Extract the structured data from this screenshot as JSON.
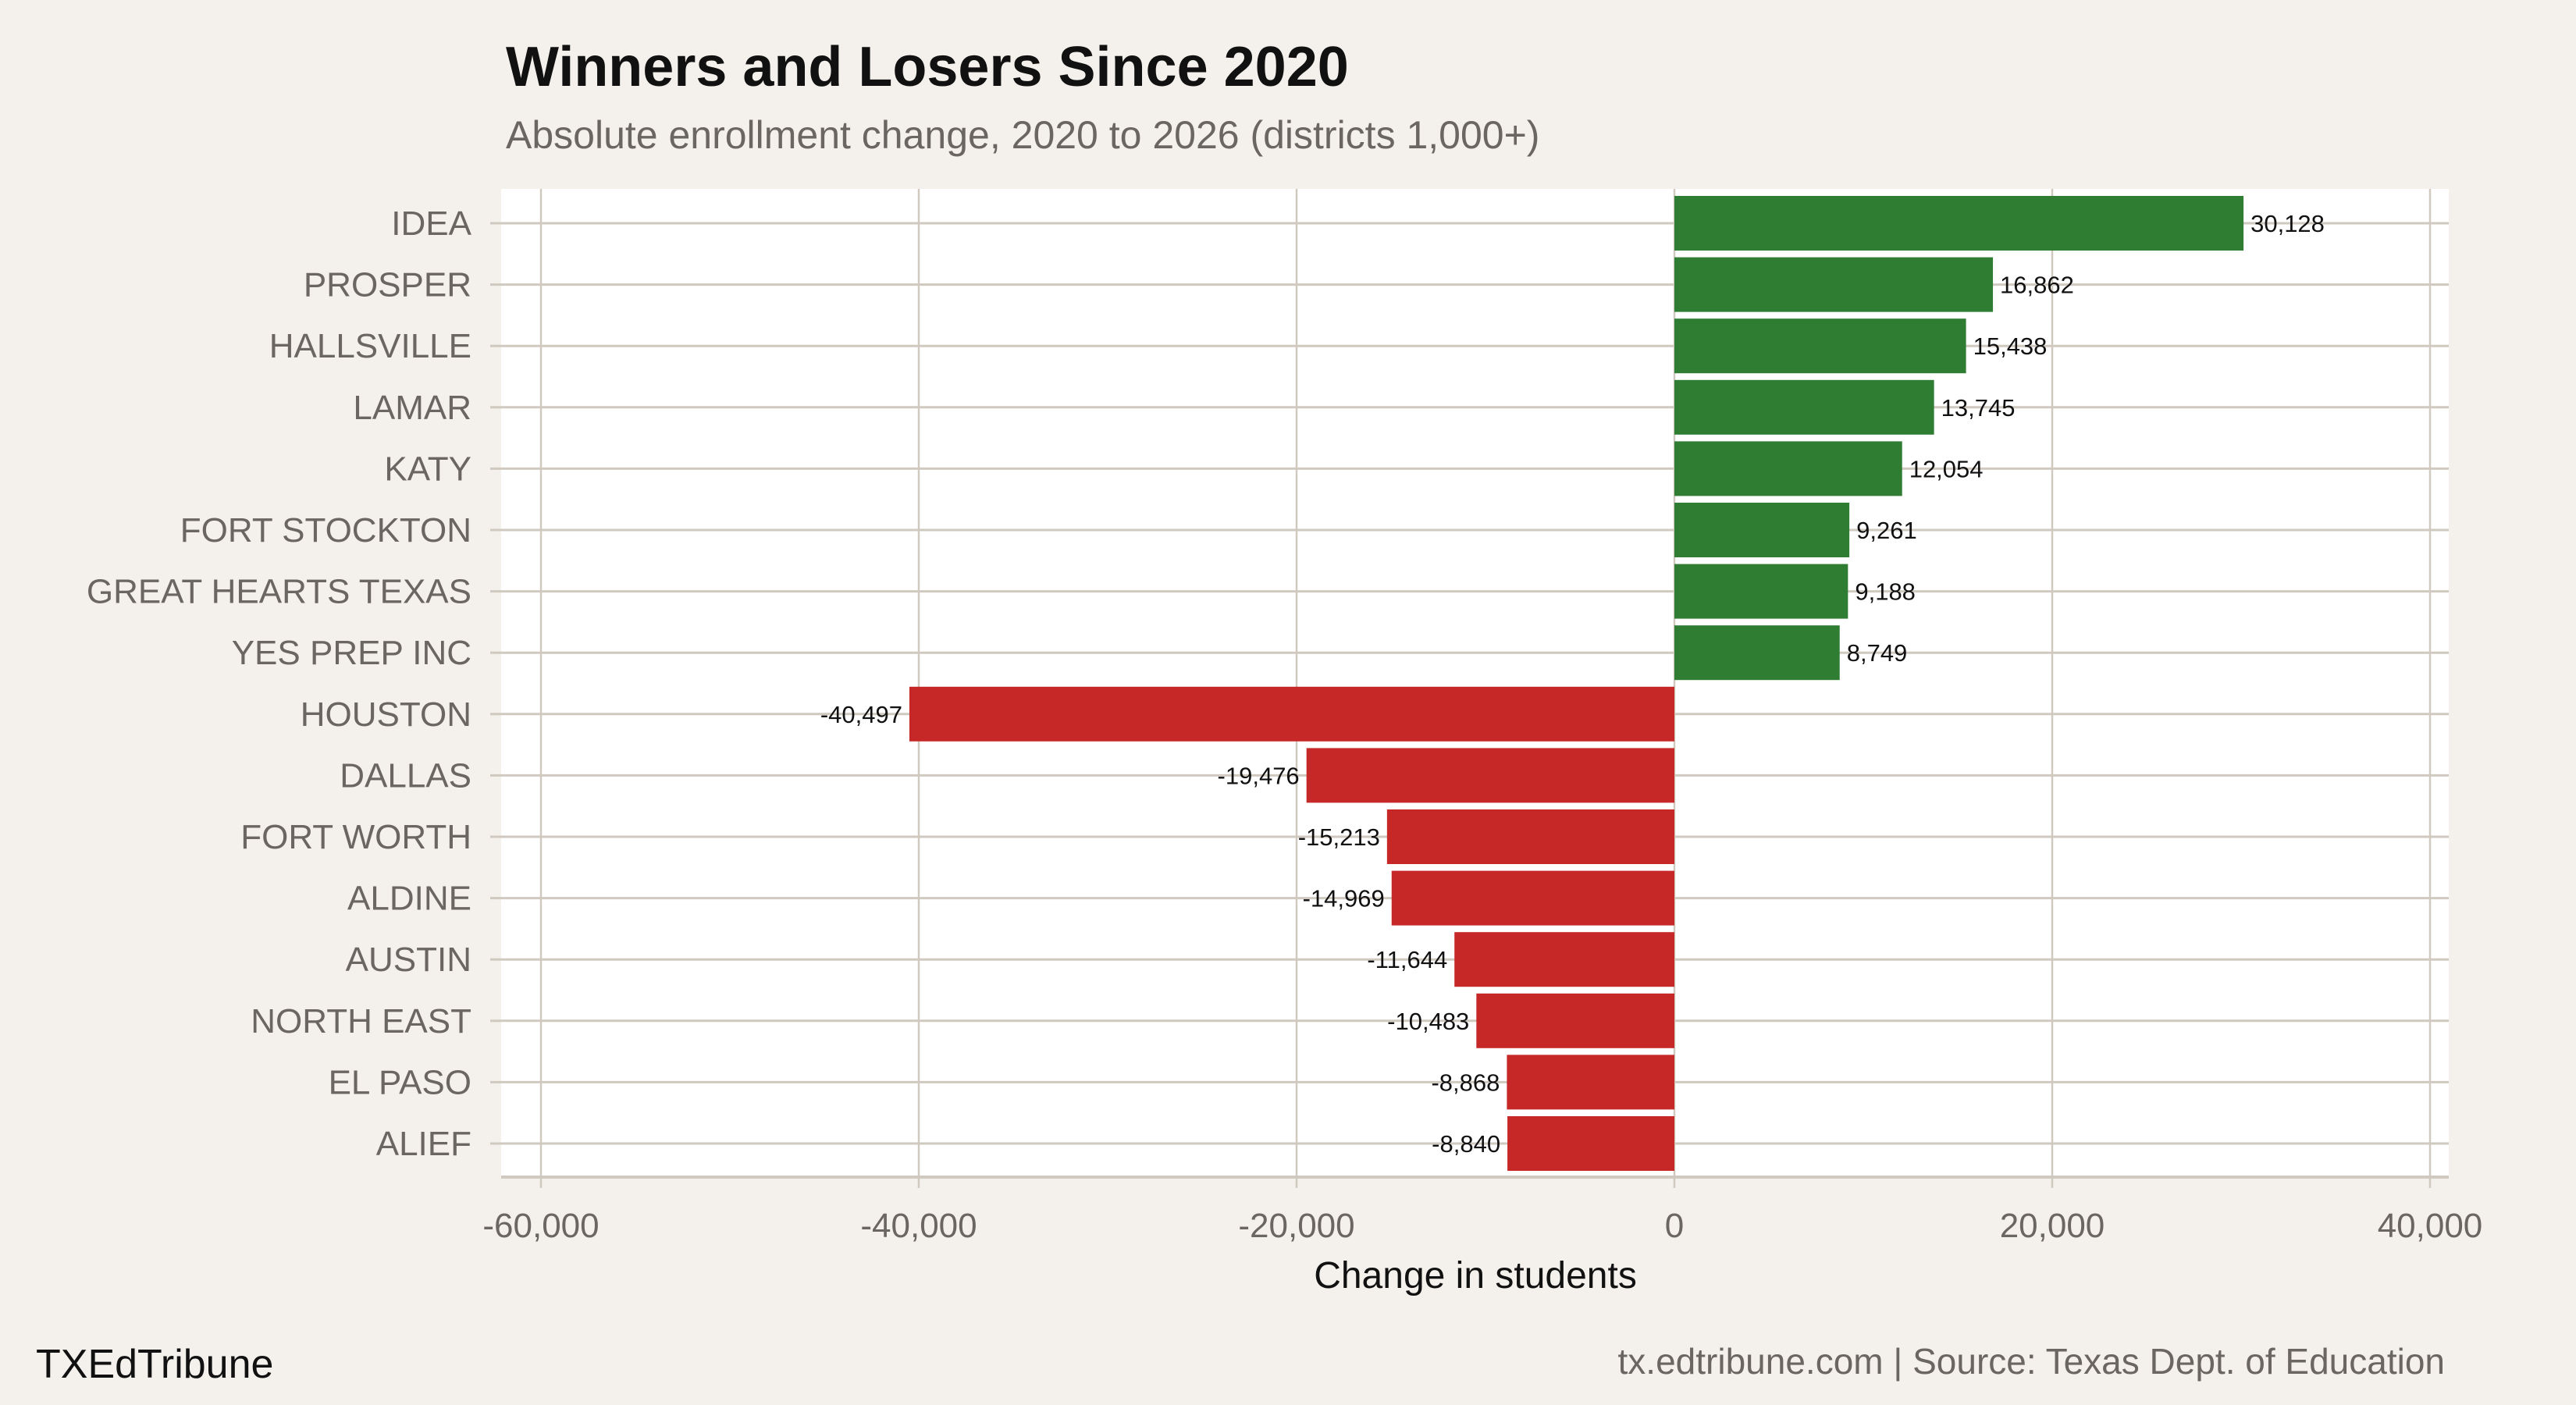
{
  "chart_data": {
    "type": "bar",
    "orientation": "horizontal",
    "title": "Winners and Losers Since 2020",
    "subtitle": "Absolute enrollment change, 2020 to 2026 (districts 1,000+)",
    "xlabel": "Change in students",
    "ylabel": "",
    "xlim": [
      -60000,
      40000
    ],
    "xticks": [
      -60000,
      -40000,
      -20000,
      0,
      20000,
      40000
    ],
    "xtick_labels": [
      "-60,000",
      "-40,000",
      "-20,000",
      "0",
      "20,000",
      "40,000"
    ],
    "grid": true,
    "categories": [
      "IDEA",
      "PROSPER",
      "HALLSVILLE",
      "LAMAR",
      "KATY",
      "FORT STOCKTON",
      "GREAT HEARTS TEXAS",
      "YES PREP INC",
      "HOUSTON",
      "DALLAS",
      "FORT WORTH",
      "ALDINE",
      "AUSTIN",
      "NORTH EAST",
      "EL PASO",
      "ALIEF"
    ],
    "values": [
      30128,
      16862,
      15438,
      13745,
      12054,
      9261,
      9188,
      8749,
      -40497,
      -19476,
      -15213,
      -14969,
      -11644,
      -10483,
      -8868,
      -8840
    ],
    "data_labels": [
      "30,128",
      "16,862",
      "15,438",
      "13,745",
      "12,054",
      "9,261",
      "9,188",
      "8,749",
      "-40,497",
      "-19,476",
      "-15,213",
      "-14,969",
      "-11,644",
      "-10,483",
      "-8,868",
      "-8,840"
    ],
    "colors": {
      "positive": "#2e7d32",
      "negative": "#c62828",
      "background": "#f4f1ec",
      "panel": "#ffffff",
      "grid": "#cfc9c0"
    }
  },
  "footer": {
    "brand": "TXEdTribune",
    "source": "tx.edtribune.com | Source: Texas Dept. of Education"
  }
}
